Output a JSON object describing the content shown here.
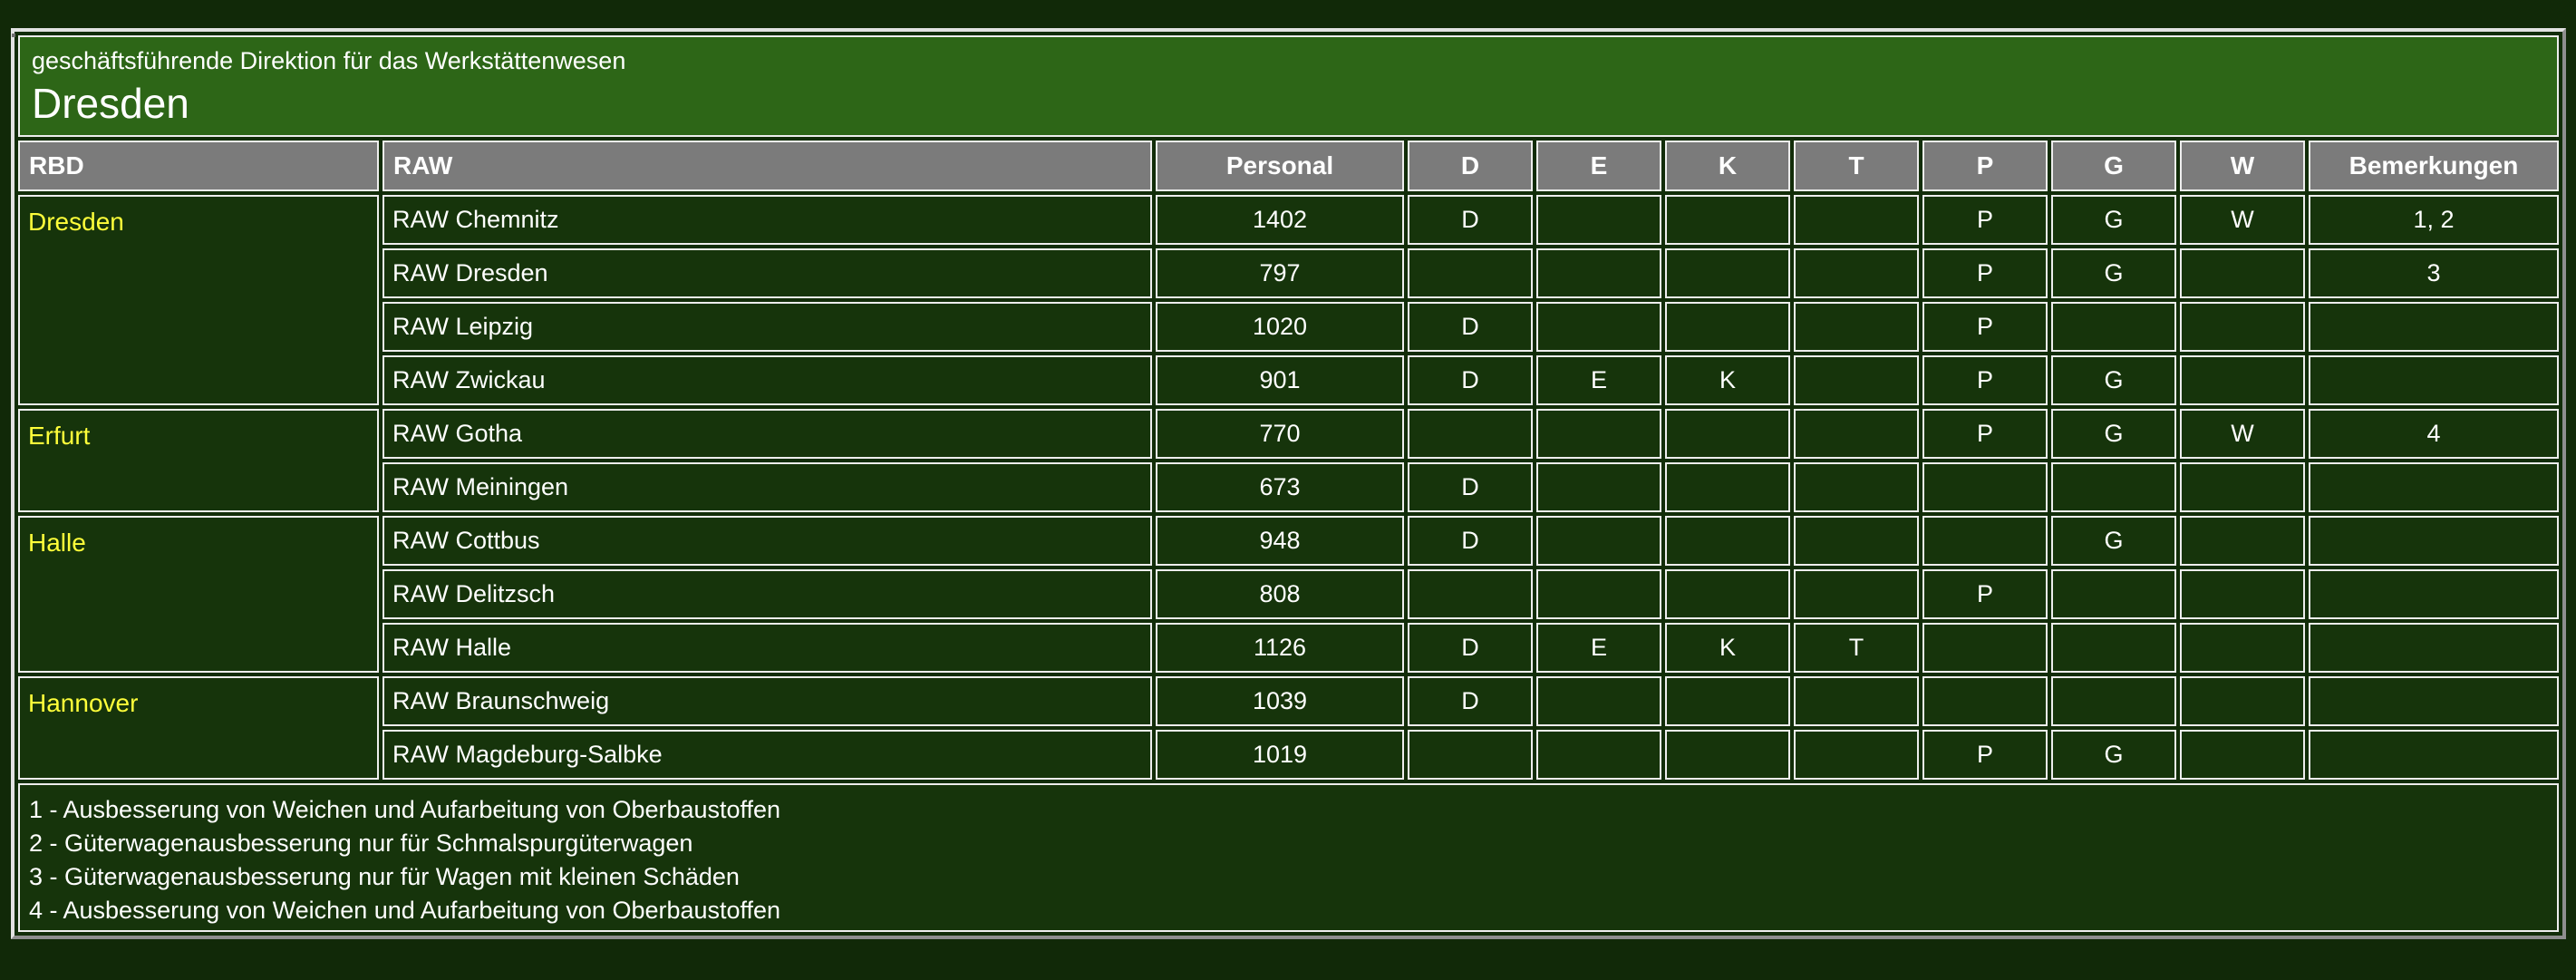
{
  "page_title_band": {
    "title_small": "geschäftsführende Direktion für das Werkstättenwesen",
    "title_large": "Dresden"
  },
  "table": {
    "columns": [
      "RBD",
      "RAW",
      "Personal",
      "D",
      "E",
      "K",
      "T",
      "P",
      "G",
      "W",
      "Bemerkungen"
    ],
    "groups": [
      {
        "rbd": "Dresden",
        "rows": [
          {
            "raw": "RAW Chemnitz",
            "personal": "1402",
            "d": "D",
            "e": "",
            "k": "",
            "t": "",
            "p": "P",
            "g": "G",
            "w": "W",
            "bemerkungen": "1, 2"
          },
          {
            "raw": "RAW Dresden",
            "personal": "797",
            "d": "",
            "e": "",
            "k": "",
            "t": "",
            "p": "P",
            "g": "G",
            "w": "",
            "bemerkungen": "3"
          },
          {
            "raw": "RAW Leipzig",
            "personal": "1020",
            "d": "D",
            "e": "",
            "k": "",
            "t": "",
            "p": "P",
            "g": "",
            "w": "",
            "bemerkungen": ""
          },
          {
            "raw": "RAW Zwickau",
            "personal": "901",
            "d": "D",
            "e": "E",
            "k": "K",
            "t": "",
            "p": "P",
            "g": "G",
            "w": "",
            "bemerkungen": ""
          }
        ]
      },
      {
        "rbd": "Erfurt",
        "rows": [
          {
            "raw": "RAW Gotha",
            "personal": "770",
            "d": "",
            "e": "",
            "k": "",
            "t": "",
            "p": "P",
            "g": "G",
            "w": "W",
            "bemerkungen": "4"
          },
          {
            "raw": "RAW Meiningen",
            "personal": "673",
            "d": "D",
            "e": "",
            "k": "",
            "t": "",
            "p": "",
            "g": "",
            "w": "",
            "bemerkungen": ""
          }
        ]
      },
      {
        "rbd": "Halle",
        "rows": [
          {
            "raw": "RAW Cottbus",
            "personal": "948",
            "d": "D",
            "e": "",
            "k": "",
            "t": "",
            "p": "",
            "g": "G",
            "w": "",
            "bemerkungen": ""
          },
          {
            "raw": "RAW Delitzsch",
            "personal": "808",
            "d": "",
            "e": "",
            "k": "",
            "t": "",
            "p": "P",
            "g": "",
            "w": "",
            "bemerkungen": ""
          },
          {
            "raw": "RAW Halle",
            "personal": "1126",
            "d": "D",
            "e": "E",
            "k": "K",
            "t": "T",
            "p": "",
            "g": "",
            "w": "",
            "bemerkungen": ""
          }
        ]
      },
      {
        "rbd": "Hannover",
        "rows": [
          {
            "raw": "RAW Braunschweig",
            "personal": "1039",
            "d": "D",
            "e": "",
            "k": "",
            "t": "",
            "p": "",
            "g": "",
            "w": "",
            "bemerkungen": ""
          },
          {
            "raw": "RAW Magdeburg-Salbke",
            "personal": "1019",
            "d": "",
            "e": "",
            "k": "",
            "t": "",
            "p": "P",
            "g": "G",
            "w": "",
            "bemerkungen": ""
          }
        ]
      }
    ],
    "footnotes": [
      "1 - Ausbesserung von Weichen und Aufarbeitung von Oberbaustoffen",
      "2 - Güterwagenausbesserung nur für Schmalspurgüterwagen",
      "3 - Güterwagenausbesserung nur für Wagen mit kleinen Schäden",
      "4 - Ausbesserung von Weichen und Aufarbeitung von Oberbaustoffen"
    ]
  },
  "colors": {
    "page_background": "#112908",
    "cell_background": "#16340b",
    "title_band_background": "#2d6617",
    "column_header_background": "#7b7b7b",
    "rbd_text": "#ffff3a",
    "body_text": "#ffffff",
    "cell_border": "#ededed"
  }
}
